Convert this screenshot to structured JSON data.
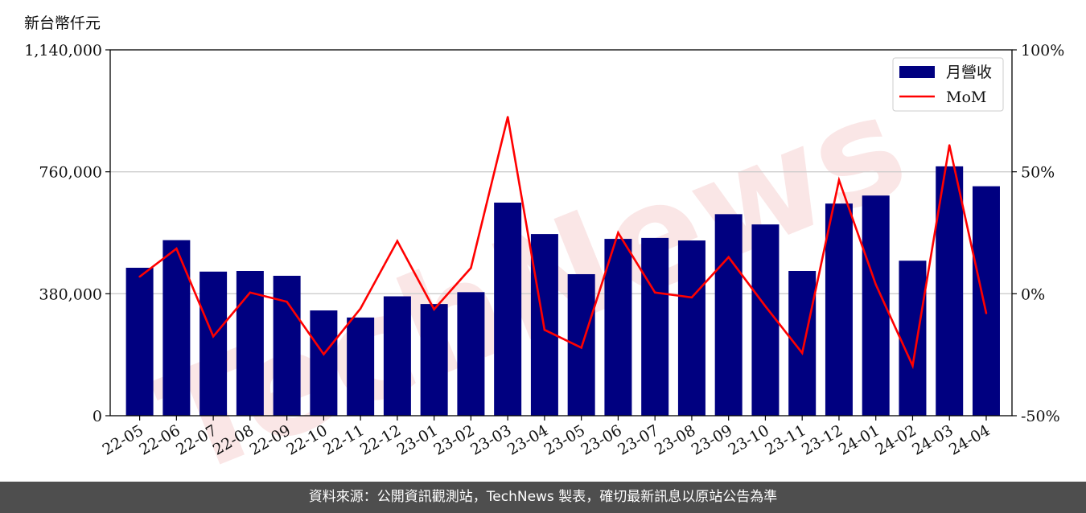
{
  "unit_label": "新台幣仟元",
  "watermark": "TechNews",
  "footer": "資料來源：公開資訊觀測站，TechNews 製表，確切最新訊息以原站公告為準",
  "colors": {
    "bar": "#000080",
    "line": "#ff0000",
    "grid": "#cccccc",
    "watermark": "#f2b8b8"
  },
  "chart_data": {
    "type": "bar",
    "categories": [
      "22-05",
      "22-06",
      "22-07",
      "22-08",
      "22-09",
      "22-10",
      "22-11",
      "22-12",
      "23-01",
      "23-02",
      "23-03",
      "23-04",
      "23-05",
      "23-06",
      "23-07",
      "23-08",
      "23-09",
      "23-10",
      "23-11",
      "23-12",
      "24-01",
      "24-02",
      "24-03",
      "24-04"
    ],
    "series": [
      {
        "name": "月營收",
        "axis": "left",
        "type": "bar",
        "values": [
          461000,
          547000,
          449000,
          451000,
          436000,
          328000,
          306000,
          372000,
          348000,
          385000,
          664000,
          566000,
          441000,
          551000,
          554000,
          546000,
          628000,
          596000,
          451000,
          661000,
          686000,
          483000,
          777000,
          715000
        ]
      },
      {
        "name": "MoM",
        "axis": "right",
        "type": "line",
        "values": [
          7,
          18.5,
          -17.5,
          0.5,
          -3.3,
          -24.8,
          -6.1,
          21.6,
          -6.4,
          10.6,
          72.5,
          -14.8,
          -22.1,
          25,
          0.5,
          -1.5,
          15,
          -5.1,
          -24.3,
          46.6,
          3.8,
          -29.5,
          60.9,
          -8
        ]
      }
    ],
    "yticks_left": [
      "0",
      "380,000",
      "760,000",
      "1,140,000"
    ],
    "ylim_left": [
      0,
      1140000
    ],
    "yticks_right": [
      "-50%",
      "0%",
      "50%",
      "100%"
    ],
    "ylim_right": [
      -50,
      100
    ],
    "grid": "horizontal",
    "legend_position": "top-right"
  }
}
